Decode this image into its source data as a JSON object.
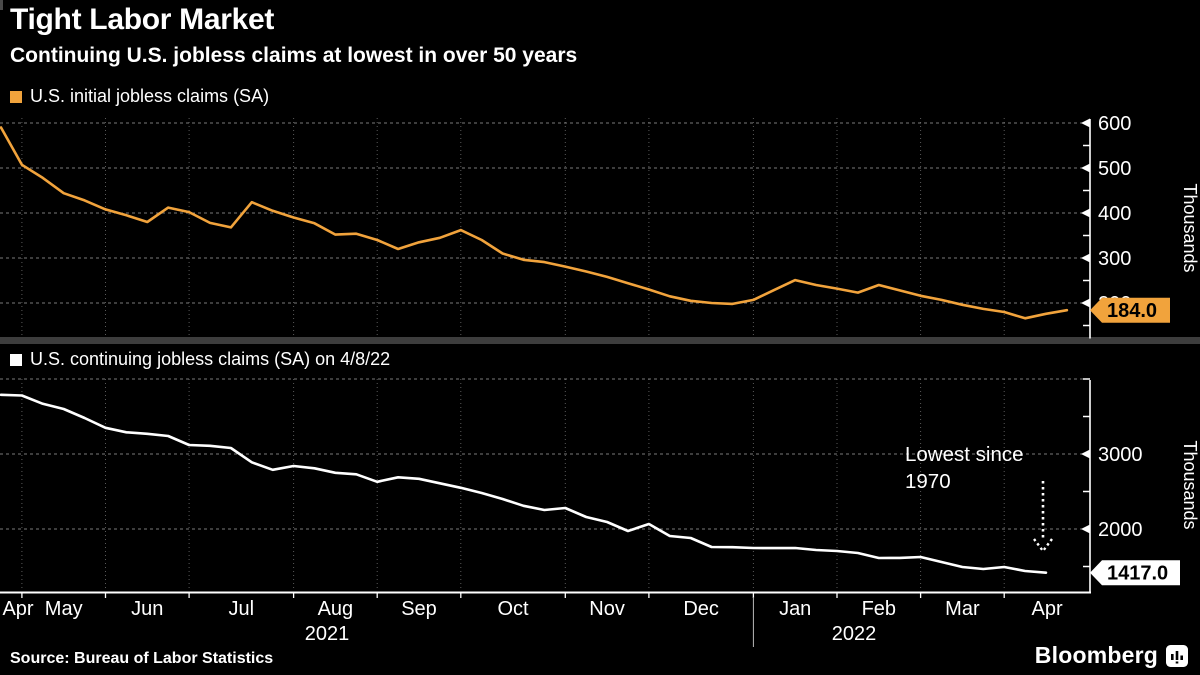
{
  "header": {
    "title": "Tight Labor Market",
    "subtitle": "Continuing U.S. jobless claims at lowest in over 50 years"
  },
  "legends": {
    "initial": "U.S. initial jobless claims (SA)",
    "continuing": "U.S. continuing jobless claims (SA) on 4/8/22"
  },
  "annotation": {
    "line1": "Lowest since",
    "line2": "1970"
  },
  "footer": {
    "source": "Source: Bureau of Labor Statistics",
    "brand": "Bloomberg"
  },
  "colors": {
    "background": "#000000",
    "orange": "#F1A33C",
    "white_line": "#FFFFFF",
    "grid_horizontal": "#7a7a7a",
    "grid_vertical": "#5a5a5a",
    "axis": "#FFFFFF",
    "divider": "#3d3d3d",
    "tag_text": "#000000"
  },
  "xaxis": {
    "month_labels": [
      "Apr",
      "May",
      "Jun",
      "Jul",
      "Aug",
      "Sep",
      "Oct",
      "Nov",
      "Dec",
      "Jan",
      "Feb",
      "Mar",
      "Apr"
    ],
    "year_labels": [
      "2021",
      "2022"
    ]
  },
  "chart_data": [
    {
      "type": "line",
      "name": "U.S. initial jobless claims (SA)",
      "unit": "Thousands",
      "ylabel_right": "Thousands",
      "color": "#F1A33C",
      "frequency": "weekly",
      "x_start": "Apr 2021",
      "x_end": "Apr 2022",
      "ylim": [
        120,
        625
      ],
      "yticks_labeled": [
        200,
        300,
        400,
        500,
        600
      ],
      "yticks_minor": [
        150,
        250,
        350,
        450,
        550
      ],
      "grid": true,
      "last_value": 184.0,
      "last_value_label": "184.0",
      "values": [
        590,
        507,
        478,
        444,
        428,
        408,
        395,
        380,
        412,
        402,
        378,
        368,
        424,
        405,
        390,
        377,
        352,
        354,
        340,
        320,
        335,
        345,
        362,
        340,
        310,
        296,
        291,
        281,
        270,
        258,
        244,
        230,
        215,
        205,
        200,
        198,
        207,
        229,
        251,
        240,
        232,
        223,
        240,
        228,
        216,
        207,
        196,
        187,
        180,
        166,
        176,
        184
      ]
    },
    {
      "type": "line",
      "name": "U.S. continuing jobless claims (SA) on 4/8/22",
      "unit": "Thousands",
      "ylabel_right": "Thousands",
      "color": "#FFFFFF",
      "frequency": "weekly",
      "x_start": "Apr 2021",
      "x_end": "Apr 2022",
      "ylim": [
        1150,
        4000
      ],
      "yticks_labeled": [
        2000,
        3000
      ],
      "yticks_minor": [
        1500,
        2500,
        3500,
        4000
      ],
      "grid": true,
      "annotation": "Lowest since 1970",
      "last_value": 1417.0,
      "last_value_label": "1417.0",
      "values": [
        3790,
        3780,
        3670,
        3600,
        3480,
        3350,
        3290,
        3270,
        3240,
        3120,
        3110,
        3080,
        2890,
        2790,
        2840,
        2810,
        2750,
        2730,
        2630,
        2690,
        2670,
        2610,
        2550,
        2480,
        2400,
        2310,
        2253,
        2280,
        2160,
        2093,
        1973,
        2067,
        1907,
        1880,
        1760,
        1757,
        1747,
        1745,
        1747,
        1720,
        1707,
        1680,
        1613,
        1615,
        1627,
        1560,
        1493,
        1467,
        1493,
        1440,
        1417
      ]
    }
  ]
}
